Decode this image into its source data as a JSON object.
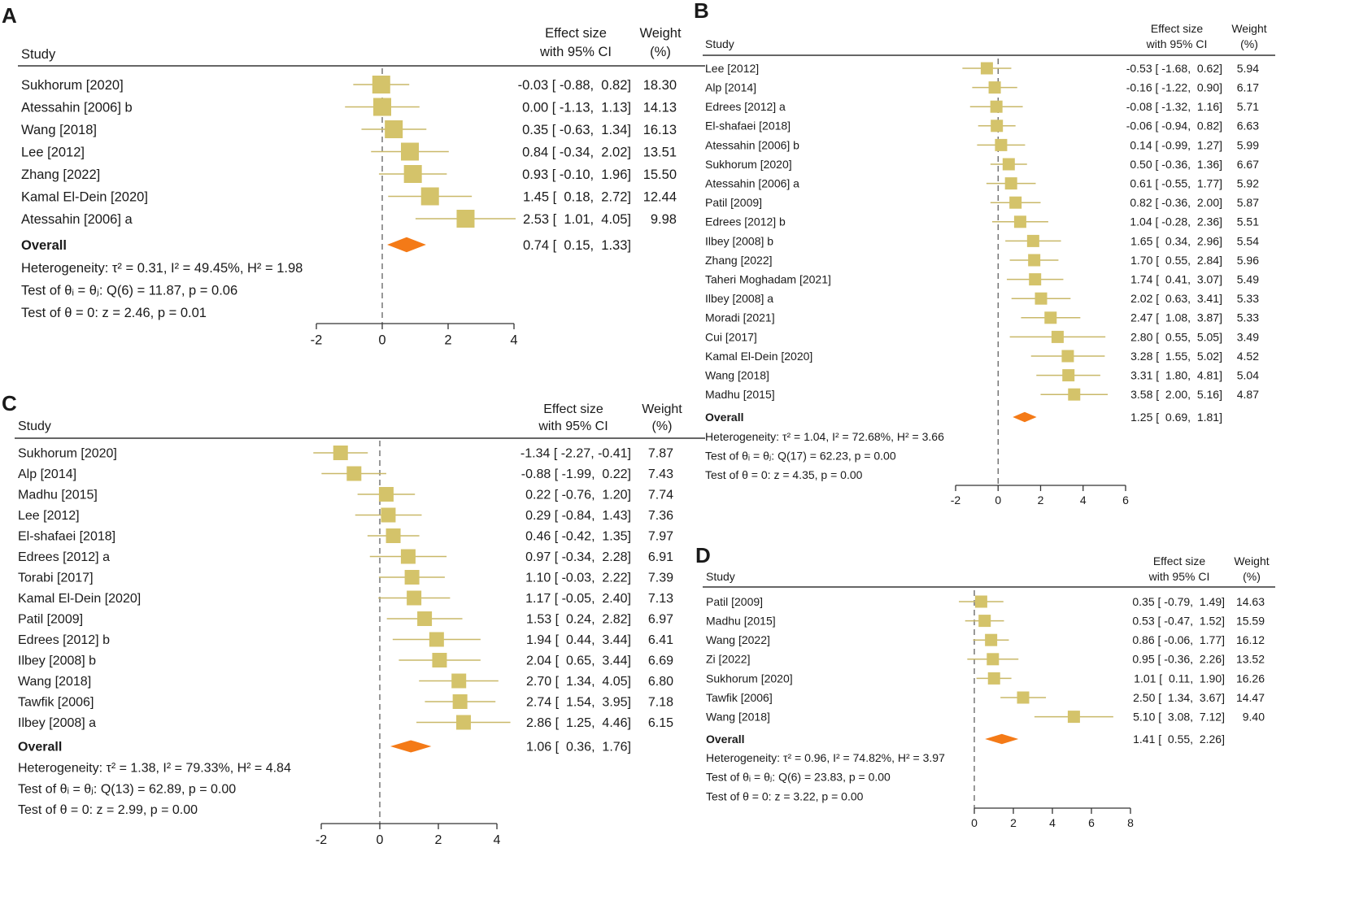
{
  "labels": {
    "study_header": "Study",
    "effect_header_line1": "Effect size",
    "effect_header_line2": "with 95% CI",
    "weight_header_line1": "Weight",
    "weight_header_line2": "(%)",
    "overall": "Overall"
  },
  "colors": {
    "square": "#d4c36a",
    "ci_line": "#c9b869",
    "diamond": "#f47a17",
    "axis": "#333333",
    "dashed": "#555555"
  },
  "chart_data": [
    {
      "panel": "A",
      "type": "forest",
      "xlim": [
        -2,
        4
      ],
      "xticks": [
        -2,
        0,
        2,
        4
      ],
      "studies": [
        {
          "label": "Sukhorum [2020]",
          "est": -0.03,
          "lo": -0.88,
          "hi": 0.82,
          "weight": 18.3,
          "ci_text": "-0.03 [ -0.88,  0.82]",
          "weight_text": "18.30"
        },
        {
          "label": "Atessahin [2006] b",
          "est": 0.0,
          "lo": -1.13,
          "hi": 1.13,
          "weight": 14.13,
          "ci_text": "0.00 [ -1.13,  1.13]",
          "weight_text": "14.13"
        },
        {
          "label": "Wang [2018]",
          "est": 0.35,
          "lo": -0.63,
          "hi": 1.34,
          "weight": 16.13,
          "ci_text": "0.35 [ -0.63,  1.34]",
          "weight_text": "16.13"
        },
        {
          "label": "Lee [2012]",
          "est": 0.84,
          "lo": -0.34,
          "hi": 2.02,
          "weight": 13.51,
          "ci_text": "0.84 [ -0.34,  2.02]",
          "weight_text": "13.51"
        },
        {
          "label": "Zhang [2022]",
          "est": 0.93,
          "lo": -0.1,
          "hi": 1.96,
          "weight": 15.5,
          "ci_text": "0.93 [ -0.10,  1.96]",
          "weight_text": "15.50"
        },
        {
          "label": "Kamal El-Dein [2020]",
          "est": 1.45,
          "lo": 0.18,
          "hi": 2.72,
          "weight": 12.44,
          "ci_text": "1.45 [  0.18,  2.72]",
          "weight_text": "12.44"
        },
        {
          "label": "Atessahin [2006] a",
          "est": 2.53,
          "lo": 1.01,
          "hi": 4.05,
          "weight": 9.98,
          "ci_text": "2.53 [  1.01,  4.05]",
          "weight_text": "9.98"
        }
      ],
      "overall": {
        "est": 0.74,
        "lo": 0.15,
        "hi": 1.33,
        "ci_text": "0.74 [  0.15,  1.33]"
      },
      "stats": [
        "Heterogeneity: τ² = 0.31, I² = 49.45%, H² = 1.98",
        "Test of θᵢ = θⱼ: Q(6) = 11.87, p = 0.06",
        "Test of θ = 0: z = 2.46, p = 0.01"
      ]
    },
    {
      "panel": "B",
      "type": "forest",
      "xlim": [
        -2,
        6
      ],
      "xticks": [
        -2,
        0,
        2,
        4,
        6
      ],
      "studies": [
        {
          "label": "Lee [2012]",
          "est": -0.53,
          "lo": -1.68,
          "hi": 0.62,
          "weight": 5.94,
          "ci_text": "-0.53 [ -1.68,  0.62]",
          "weight_text": "5.94"
        },
        {
          "label": "Alp [2014]",
          "est": -0.16,
          "lo": -1.22,
          "hi": 0.9,
          "weight": 6.17,
          "ci_text": "-0.16 [ -1.22,  0.90]",
          "weight_text": "6.17"
        },
        {
          "label": "Edrees [2012] a",
          "est": -0.08,
          "lo": -1.32,
          "hi": 1.16,
          "weight": 5.71,
          "ci_text": "-0.08 [ -1.32,  1.16]",
          "weight_text": "5.71"
        },
        {
          "label": "El-shafaei [2018]",
          "est": -0.06,
          "lo": -0.94,
          "hi": 0.82,
          "weight": 6.63,
          "ci_text": "-0.06 [ -0.94,  0.82]",
          "weight_text": "6.63"
        },
        {
          "label": "Atessahin [2006] b",
          "est": 0.14,
          "lo": -0.99,
          "hi": 1.27,
          "weight": 5.99,
          "ci_text": "0.14 [ -0.99,  1.27]",
          "weight_text": "5.99"
        },
        {
          "label": "Sukhorum [2020]",
          "est": 0.5,
          "lo": -0.36,
          "hi": 1.36,
          "weight": 6.67,
          "ci_text": "0.50 [ -0.36,  1.36]",
          "weight_text": "6.67"
        },
        {
          "label": "Atessahin [2006] a",
          "est": 0.61,
          "lo": -0.55,
          "hi": 1.77,
          "weight": 5.92,
          "ci_text": "0.61 [ -0.55,  1.77]",
          "weight_text": "5.92"
        },
        {
          "label": "Patil [2009]",
          "est": 0.82,
          "lo": -0.36,
          "hi": 2.0,
          "weight": 5.87,
          "ci_text": "0.82 [ -0.36,  2.00]",
          "weight_text": "5.87"
        },
        {
          "label": "Edrees [2012] b",
          "est": 1.04,
          "lo": -0.28,
          "hi": 2.36,
          "weight": 5.51,
          "ci_text": "1.04 [ -0.28,  2.36]",
          "weight_text": "5.51"
        },
        {
          "label": "Ilbey [2008] b",
          "est": 1.65,
          "lo": 0.34,
          "hi": 2.96,
          "weight": 5.54,
          "ci_text": "1.65 [  0.34,  2.96]",
          "weight_text": "5.54"
        },
        {
          "label": "Zhang [2022]",
          "est": 1.7,
          "lo": 0.55,
          "hi": 2.84,
          "weight": 5.96,
          "ci_text": "1.70 [  0.55,  2.84]",
          "weight_text": "5.96"
        },
        {
          "label": "Taheri Moghadam [2021]",
          "est": 1.74,
          "lo": 0.41,
          "hi": 3.07,
          "weight": 5.49,
          "ci_text": "1.74 [  0.41,  3.07]",
          "weight_text": "5.49"
        },
        {
          "label": "Ilbey [2008] a",
          "est": 2.02,
          "lo": 0.63,
          "hi": 3.41,
          "weight": 5.33,
          "ci_text": "2.02 [  0.63,  3.41]",
          "weight_text": "5.33"
        },
        {
          "label": "Moradi [2021]",
          "est": 2.47,
          "lo": 1.08,
          "hi": 3.87,
          "weight": 5.33,
          "ci_text": "2.47 [  1.08,  3.87]",
          "weight_text": "5.33"
        },
        {
          "label": "Cui [2017]",
          "est": 2.8,
          "lo": 0.55,
          "hi": 5.05,
          "weight": 3.49,
          "ci_text": "2.80 [  0.55,  5.05]",
          "weight_text": "3.49"
        },
        {
          "label": "Kamal El-Dein [2020]",
          "est": 3.28,
          "lo": 1.55,
          "hi": 5.02,
          "weight": 4.52,
          "ci_text": "3.28 [  1.55,  5.02]",
          "weight_text": "4.52"
        },
        {
          "label": "Wang [2018]",
          "est": 3.31,
          "lo": 1.8,
          "hi": 4.81,
          "weight": 5.04,
          "ci_text": "3.31 [  1.80,  4.81]",
          "weight_text": "5.04"
        },
        {
          "label": "Madhu [2015]",
          "est": 3.58,
          "lo": 2.0,
          "hi": 5.16,
          "weight": 4.87,
          "ci_text": "3.58 [  2.00,  5.16]",
          "weight_text": "4.87"
        }
      ],
      "overall": {
        "est": 1.25,
        "lo": 0.69,
        "hi": 1.81,
        "ci_text": "1.25 [  0.69,  1.81]"
      },
      "stats": [
        "Heterogeneity: τ² = 1.04, I² = 72.68%, H² = 3.66",
        "Test of θᵢ = θⱼ: Q(17) = 62.23, p = 0.00",
        "Test of θ = 0: z = 4.35, p = 0.00"
      ]
    },
    {
      "panel": "C",
      "type": "forest",
      "xlim": [
        -2,
        4
      ],
      "xticks": [
        -2,
        0,
        2,
        4
      ],
      "studies": [
        {
          "label": "Sukhorum [2020]",
          "est": -1.34,
          "lo": -2.27,
          "hi": -0.41,
          "weight": 7.87,
          "ci_text": "-1.34 [ -2.27, -0.41]",
          "weight_text": "7.87"
        },
        {
          "label": "Alp [2014]",
          "est": -0.88,
          "lo": -1.99,
          "hi": 0.22,
          "weight": 7.43,
          "ci_text": "-0.88 [ -1.99,  0.22]",
          "weight_text": "7.43"
        },
        {
          "label": "Madhu [2015]",
          "est": 0.22,
          "lo": -0.76,
          "hi": 1.2,
          "weight": 7.74,
          "ci_text": "0.22 [ -0.76,  1.20]",
          "weight_text": "7.74"
        },
        {
          "label": "Lee [2012]",
          "est": 0.29,
          "lo": -0.84,
          "hi": 1.43,
          "weight": 7.36,
          "ci_text": "0.29 [ -0.84,  1.43]",
          "weight_text": "7.36"
        },
        {
          "label": "El-shafaei [2018]",
          "est": 0.46,
          "lo": -0.42,
          "hi": 1.35,
          "weight": 7.97,
          "ci_text": "0.46 [ -0.42,  1.35]",
          "weight_text": "7.97"
        },
        {
          "label": "Edrees [2012] a",
          "est": 0.97,
          "lo": -0.34,
          "hi": 2.28,
          "weight": 6.91,
          "ci_text": "0.97 [ -0.34,  2.28]",
          "weight_text": "6.91"
        },
        {
          "label": "Torabi [2017]",
          "est": 1.1,
          "lo": -0.03,
          "hi": 2.22,
          "weight": 7.39,
          "ci_text": "1.10 [ -0.03,  2.22]",
          "weight_text": "7.39"
        },
        {
          "label": "Kamal El-Dein [2020]",
          "est": 1.17,
          "lo": -0.05,
          "hi": 2.4,
          "weight": 7.13,
          "ci_text": "1.17 [ -0.05,  2.40]",
          "weight_text": "7.13"
        },
        {
          "label": "Patil [2009]",
          "est": 1.53,
          "lo": 0.24,
          "hi": 2.82,
          "weight": 6.97,
          "ci_text": "1.53 [  0.24,  2.82]",
          "weight_text": "6.97"
        },
        {
          "label": "Edrees [2012] b",
          "est": 1.94,
          "lo": 0.44,
          "hi": 3.44,
          "weight": 6.41,
          "ci_text": "1.94 [  0.44,  3.44]",
          "weight_text": "6.41"
        },
        {
          "label": "Ilbey [2008] b",
          "est": 2.04,
          "lo": 0.65,
          "hi": 3.44,
          "weight": 6.69,
          "ci_text": "2.04 [  0.65,  3.44]",
          "weight_text": "6.69"
        },
        {
          "label": "Wang [2018]",
          "est": 2.7,
          "lo": 1.34,
          "hi": 4.05,
          "weight": 6.8,
          "ci_text": "2.70 [  1.34,  4.05]",
          "weight_text": "6.80"
        },
        {
          "label": "Tawfik [2006]",
          "est": 2.74,
          "lo": 1.54,
          "hi": 3.95,
          "weight": 7.18,
          "ci_text": "2.74 [  1.54,  3.95]",
          "weight_text": "7.18"
        },
        {
          "label": "Ilbey [2008] a",
          "est": 2.86,
          "lo": 1.25,
          "hi": 4.46,
          "weight": 6.15,
          "ci_text": "2.86 [  1.25,  4.46]",
          "weight_text": "6.15"
        }
      ],
      "overall": {
        "est": 1.06,
        "lo": 0.36,
        "hi": 1.76,
        "ci_text": "1.06 [  0.36,  1.76]"
      },
      "stats": [
        "Heterogeneity: τ² = 1.38, I² = 79.33%, H² = 4.84",
        "Test of θᵢ = θⱼ: Q(13) = 62.89, p = 0.00",
        "Test of θ = 0: z = 2.99, p = 0.00"
      ]
    },
    {
      "panel": "D",
      "type": "forest",
      "xlim": [
        0,
        8
      ],
      "xticks": [
        0,
        2,
        4,
        6,
        8
      ],
      "studies": [
        {
          "label": "Patil [2009]",
          "est": 0.35,
          "lo": -0.79,
          "hi": 1.49,
          "weight": 14.63,
          "ci_text": "0.35 [ -0.79,  1.49]",
          "weight_text": "14.63"
        },
        {
          "label": "Madhu [2015]",
          "est": 0.53,
          "lo": -0.47,
          "hi": 1.52,
          "weight": 15.59,
          "ci_text": "0.53 [ -0.47,  1.52]",
          "weight_text": "15.59"
        },
        {
          "label": "Wang [2022]",
          "est": 0.86,
          "lo": -0.06,
          "hi": 1.77,
          "weight": 16.12,
          "ci_text": "0.86 [ -0.06,  1.77]",
          "weight_text": "16.12"
        },
        {
          "label": "Zi [2022]",
          "est": 0.95,
          "lo": -0.36,
          "hi": 2.26,
          "weight": 13.52,
          "ci_text": "0.95 [ -0.36,  2.26]",
          "weight_text": "13.52"
        },
        {
          "label": "Sukhorum [2020]",
          "est": 1.01,
          "lo": 0.11,
          "hi": 1.9,
          "weight": 16.26,
          "ci_text": "1.01 [  0.11,  1.90]",
          "weight_text": "16.26"
        },
        {
          "label": "Tawfik [2006]",
          "est": 2.5,
          "lo": 1.34,
          "hi": 3.67,
          "weight": 14.47,
          "ci_text": "2.50 [  1.34,  3.67]",
          "weight_text": "14.47"
        },
        {
          "label": "Wang [2018]",
          "est": 5.1,
          "lo": 3.08,
          "hi": 7.12,
          "weight": 9.4,
          "ci_text": "5.10 [  3.08,  7.12]",
          "weight_text": "9.40"
        }
      ],
      "overall": {
        "est": 1.41,
        "lo": 0.55,
        "hi": 2.26,
        "ci_text": "1.41 [  0.55,  2.26]"
      },
      "stats": [
        "Heterogeneity: τ² = 0.96, I² = 74.82%, H² = 3.97",
        "Test of θᵢ = θⱼ: Q(6) = 23.83, p = 0.00",
        "Test of θ = 0: z = 3.22, p = 0.00"
      ]
    }
  ]
}
